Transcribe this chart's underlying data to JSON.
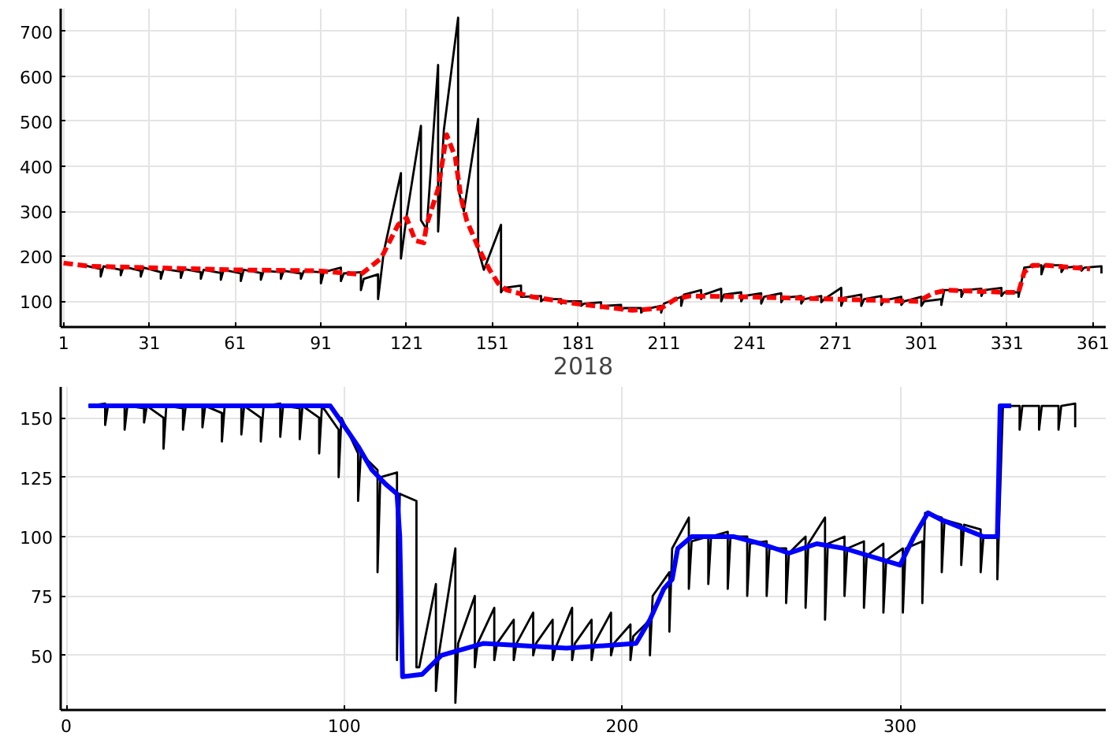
{
  "chart_data": [
    {
      "type": "line",
      "xlabel": "2018",
      "xlim": [
        0,
        365.5
      ],
      "ylim": [
        43,
        750
      ],
      "xticks": [
        1,
        31,
        61,
        91,
        121,
        151,
        181,
        211,
        241,
        271,
        301,
        331,
        361
      ],
      "yticks": [
        100,
        200,
        300,
        400,
        500,
        600,
        700
      ],
      "grid": true,
      "series": [
        {
          "color": "#000000",
          "line_style": "solid",
          "x": [
            8,
            14,
            14,
            15,
            21,
            21,
            22,
            28,
            28,
            29,
            35,
            35,
            36,
            42,
            42,
            43,
            49,
            49,
            50,
            56,
            56,
            57,
            63,
            63,
            64,
            70,
            70,
            71,
            77,
            77,
            78,
            84,
            84,
            85,
            91,
            91,
            92,
            98,
            98,
            99,
            105,
            105,
            106,
            111,
            111,
            113,
            119,
            119,
            121,
            126,
            126,
            128,
            132,
            132,
            134,
            139,
            139,
            141,
            146,
            146,
            148,
            154,
            154,
            155,
            161,
            161,
            162,
            168,
            168,
            169,
            175,
            175,
            176,
            182,
            182,
            183,
            189,
            189,
            190,
            196,
            196,
            197,
            203,
            203,
            204,
            210,
            210,
            211,
            217,
            217,
            218,
            224,
            224,
            225,
            231,
            231,
            232,
            238,
            238,
            239,
            245,
            245,
            246,
            252,
            252,
            253,
            259,
            259,
            260,
            266,
            266,
            267,
            273,
            273,
            274,
            280,
            280,
            281,
            287,
            287,
            288,
            294,
            294,
            295,
            301,
            301,
            302,
            308,
            308,
            309,
            315,
            315,
            316,
            322,
            322,
            323,
            329,
            329,
            330,
            335,
            335,
            337,
            343,
            343,
            344,
            350,
            350,
            351,
            357,
            357,
            358,
            364,
            364
          ],
          "values": [
            180,
            172,
            155,
            178,
            170,
            158,
            177,
            168,
            155,
            175,
            165,
            150,
            172,
            166,
            152,
            172,
            165,
            150,
            170,
            163,
            148,
            170,
            162,
            145,
            170,
            163,
            148,
            168,
            165,
            150,
            168,
            162,
            150,
            167,
            165,
            140,
            165,
            175,
            145,
            162,
            165,
            125,
            150,
            160,
            105,
            210,
            385,
            195,
            290,
            490,
            280,
            260,
            625,
            255,
            480,
            730,
            350,
            300,
            505,
            215,
            170,
            270,
            120,
            130,
            135,
            110,
            110,
            112,
            100,
            105,
            105,
            95,
            100,
            100,
            90,
            95,
            98,
            85,
            90,
            92,
            80,
            85,
            85,
            75,
            82,
            90,
            75,
            95,
            110,
            90,
            115,
            125,
            105,
            115,
            128,
            100,
            115,
            120,
            100,
            112,
            118,
            95,
            110,
            118,
            98,
            108,
            112,
            95,
            105,
            112,
            98,
            105,
            130,
            90,
            108,
            115,
            90,
            105,
            112,
            92,
            102,
            110,
            92,
            100,
            110,
            90,
            100,
            105,
            92,
            125,
            125,
            110,
            125,
            128,
            112,
            125,
            130,
            112,
            120,
            120,
            110,
            175,
            180,
            160,
            180,
            180,
            165,
            175,
            178,
            168,
            175,
            178,
            162
          ]
        },
        {
          "color": "#ff0000",
          "line_style": "dashed",
          "x": [
            1,
            10,
            30,
            60,
            90,
            105,
            112,
            118,
            121,
            124,
            127,
            128,
            132,
            135,
            138,
            140,
            142,
            146,
            150,
            153,
            156,
            165,
            180,
            200,
            210,
            215,
            220,
            240,
            270,
            300,
            305,
            310,
            330,
            335,
            337,
            340,
            345,
            360
          ],
          "values": [
            185,
            178,
            175,
            170,
            168,
            160,
            195,
            270,
            285,
            235,
            230,
            270,
            350,
            470,
            420,
            330,
            280,
            220,
            170,
            140,
            125,
            110,
            95,
            80,
            85,
            105,
            112,
            110,
            105,
            100,
            118,
            125,
            120,
            120,
            165,
            180,
            180,
            172
          ]
        }
      ]
    },
    {
      "type": "line",
      "xlim": [
        -2,
        374
      ],
      "ylim": [
        27,
        163
      ],
      "xticks": [
        0,
        100,
        200,
        300
      ],
      "yticks": [
        50,
        75,
        100,
        125,
        150
      ],
      "grid": true,
      "series": [
        {
          "color": "#000000",
          "line_style": "solid",
          "x": [
            8,
            14,
            14,
            15,
            21,
            21,
            22,
            28,
            28,
            29,
            35,
            35,
            36,
            42,
            42,
            43,
            49,
            49,
            50,
            56,
            56,
            57,
            63,
            63,
            64,
            70,
            70,
            71,
            77,
            77,
            78,
            84,
            84,
            85,
            91,
            91,
            92,
            98,
            98,
            99,
            105,
            105,
            106,
            112,
            112,
            113,
            119,
            119,
            120,
            126,
            126,
            127,
            133,
            133,
            134,
            140,
            140,
            141,
            147,
            147,
            148,
            154,
            154,
            155,
            161,
            161,
            162,
            168,
            168,
            169,
            175,
            175,
            176,
            182,
            182,
            183,
            189,
            189,
            190,
            196,
            196,
            197,
            203,
            203,
            204,
            210,
            210,
            211,
            217,
            217,
            218,
            224,
            224,
            225,
            231,
            231,
            232,
            238,
            238,
            239,
            245,
            245,
            246,
            252,
            252,
            253,
            259,
            259,
            260,
            266,
            266,
            267,
            273,
            273,
            274,
            280,
            280,
            281,
            287,
            287,
            288,
            294,
            294,
            295,
            301,
            301,
            302,
            308,
            308,
            309,
            315,
            315,
            316,
            322,
            322,
            323,
            329,
            329,
            330,
            335,
            335,
            337,
            343,
            343,
            344,
            350,
            350,
            351,
            357,
            357,
            358,
            363,
            363
          ],
          "values": [
            155,
            156,
            147,
            155,
            155,
            145,
            155,
            154,
            148,
            155,
            150,
            137,
            155,
            154,
            145,
            155,
            155,
            146,
            155,
            152,
            140,
            155,
            155,
            143,
            155,
            150,
            140,
            155,
            156,
            142,
            155,
            154,
            141,
            155,
            150,
            135,
            155,
            145,
            125,
            150,
            135,
            115,
            135,
            128,
            85,
            125,
            127,
            48,
            118,
            115,
            45,
            45,
            80,
            35,
            50,
            95,
            30,
            55,
            75,
            45,
            55,
            70,
            48,
            55,
            65,
            48,
            55,
            68,
            50,
            55,
            65,
            48,
            53,
            70,
            48,
            55,
            65,
            48,
            55,
            68,
            50,
            55,
            63,
            48,
            58,
            65,
            50,
            75,
            85,
            60,
            95,
            108,
            78,
            98,
            100,
            80,
            100,
            102,
            78,
            100,
            100,
            75,
            97,
            98,
            75,
            95,
            95,
            72,
            93,
            100,
            70,
            97,
            108,
            65,
            97,
            100,
            75,
            95,
            98,
            70,
            92,
            97,
            68,
            90,
            95,
            68,
            95,
            98,
            72,
            110,
            108,
            85,
            107,
            105,
            88,
            105,
            103,
            85,
            100,
            100,
            82,
            155,
            155,
            145,
            155,
            155,
            145,
            155,
            155,
            145,
            155,
            156,
            146
          ]
        },
        {
          "color": "#0000ff",
          "line_style": "solid",
          "x": [
            8,
            95,
            98,
            105,
            110,
            115,
            119,
            120,
            121,
            128,
            135,
            150,
            180,
            205,
            210,
            215,
            218,
            220,
            225,
            240,
            250,
            260,
            270,
            280,
            300,
            305,
            310,
            315,
            330,
            335,
            336,
            340
          ],
          "values": [
            155,
            155,
            150,
            138,
            128,
            122,
            118,
            100,
            41,
            42,
            50,
            55,
            53,
            55,
            65,
            78,
            82,
            95,
            100,
            100,
            97,
            93,
            97,
            95,
            88,
            100,
            110,
            107,
            100,
            100,
            155,
            155
          ]
        }
      ]
    }
  ]
}
